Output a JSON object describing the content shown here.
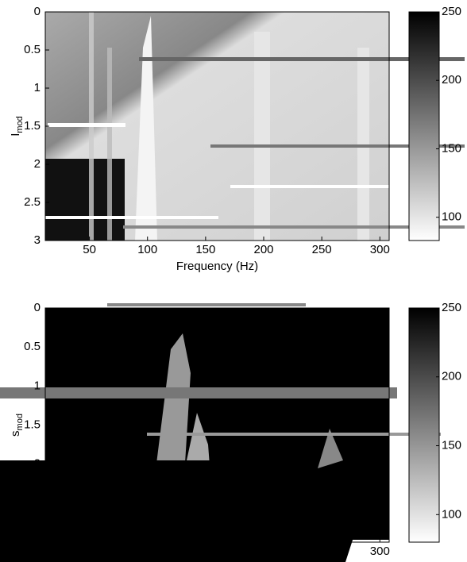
{
  "chart_data": [
    {
      "type": "heatmap",
      "x_label": "Frequency (Hz)",
      "y_label": "I",
      "y_label_sub": "mod",
      "xlim": [
        12,
        308
      ],
      "xticks": [
        50,
        100,
        150,
        200,
        250,
        300
      ],
      "ylim": [
        0,
        3
      ],
      "yticks": [
        0,
        0.5,
        1,
        1.5,
        2,
        2.5,
        3
      ],
      "y_reversed": true,
      "clim": [
        83,
        250
      ],
      "cticks": [
        100,
        150,
        200,
        250
      ],
      "cmap": [
        "#ffffff",
        "#000000"
      ]
    },
    {
      "type": "heatmap",
      "y_label": "s",
      "y_label_sub": "mod",
      "xlim": [
        12,
        308
      ],
      "xticks": [
        300
      ],
      "ylim": [
        0,
        3
      ],
      "yticks": [
        0,
        0.5,
        1,
        1.5,
        2
      ],
      "y_reversed": true,
      "clim": [
        80,
        250
      ],
      "cticks": [
        100,
        150,
        200,
        250
      ],
      "cmap": [
        "#ffffff",
        "#000000"
      ]
    }
  ]
}
